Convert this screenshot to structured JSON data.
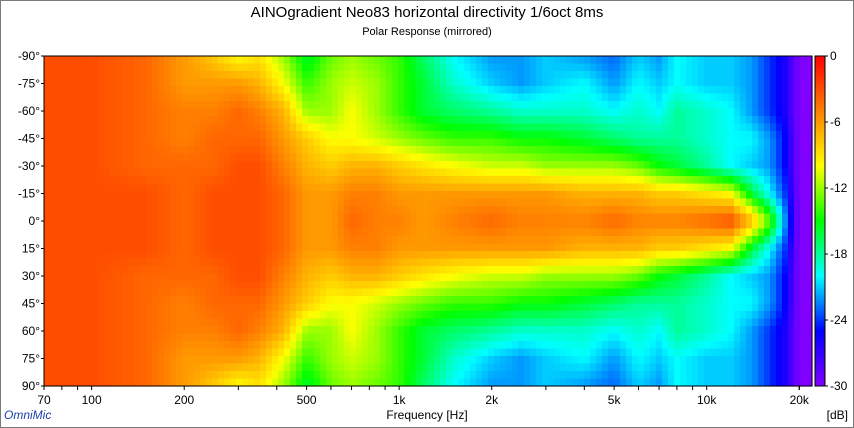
{
  "chart_data": {
    "type": "heatmap",
    "title": "AINOgradient Neo83 horizontal directivity 1/6oct 8ms",
    "subtitle": "Polar Response (mirrored)",
    "xlabel": "Frequency [Hz]",
    "ylabel": "",
    "x_scale": "log",
    "xlim": [
      70,
      22000
    ],
    "ylim": [
      -90,
      90
    ],
    "x_ticks": [
      70,
      100,
      200,
      500,
      1000,
      2000,
      5000,
      10000,
      20000
    ],
    "x_tick_labels": [
      "70",
      "100",
      "200",
      "500",
      "1k",
      "2k",
      "5k",
      "10k",
      "20k"
    ],
    "y_ticks": [
      -90,
      -75,
      -60,
      -45,
      -30,
      -15,
      0,
      15,
      30,
      45,
      60,
      75,
      90
    ],
    "y_tick_labels": [
      "-90°",
      "-75°",
      "-60°",
      "-45°",
      "-30°",
      "-15°",
      "0°",
      "15°",
      "30°",
      "45°",
      "60°",
      "75°",
      "90°"
    ],
    "colorbar": {
      "min": -30,
      "max": 0,
      "ticks": [
        0,
        -6,
        -12,
        -18,
        -24,
        -30
      ],
      "tick_labels": [
        "0",
        "-6",
        "-12",
        "-18",
        "-24",
        "-30"
      ],
      "unit": "[dB]",
      "colors": [
        "#ff0000",
        "#ff8000",
        "#ffff00",
        "#00ff00",
        "#00ffff",
        "#0000ff",
        "#8000ff"
      ]
    },
    "angles": [
      0,
      15,
      30,
      45,
      60,
      75,
      90
    ],
    "frequencies": [
      70,
      100,
      150,
      200,
      250,
      300,
      350,
      420,
      500,
      600,
      700,
      850,
      1000,
      1200,
      1500,
      2000,
      2500,
      3000,
      4000,
      5000,
      6000,
      7000,
      8000,
      10000,
      12000,
      14000,
      16000,
      18000,
      20000,
      22000
    ],
    "values_db": [
      [
        -3,
        -3,
        -3,
        -4,
        -3,
        -3,
        -3,
        -4,
        -6,
        -6,
        -4,
        -5,
        -5,
        -6,
        -5,
        -4,
        -5,
        -5,
        -5,
        -4,
        -5,
        -5,
        -5,
        -4,
        -3,
        -7,
        -13,
        -22,
        -30,
        -30
      ],
      [
        -3,
        -3,
        -3,
        -4,
        -3,
        -3,
        -3,
        -4,
        -6,
        -6,
        -5,
        -5,
        -6,
        -6,
        -6,
        -6,
        -6,
        -6,
        -7,
        -7,
        -7,
        -8,
        -8,
        -9,
        -10,
        -16,
        -20,
        -24,
        -30,
        -30
      ],
      [
        -3,
        -3,
        -4,
        -4,
        -4,
        -3,
        -3,
        -5,
        -7,
        -8,
        -7,
        -7,
        -8,
        -9,
        -10,
        -11,
        -11,
        -12,
        -12,
        -12,
        -13,
        -15,
        -16,
        -18,
        -20,
        -21,
        -22,
        -25,
        -30,
        -30
      ],
      [
        -3,
        -3,
        -4,
        -5,
        -4,
        -4,
        -4,
        -6,
        -8,
        -10,
        -10,
        -11,
        -12,
        -13,
        -14,
        -14,
        -15,
        -15,
        -16,
        -17,
        -18,
        -18,
        -18,
        -19,
        -20,
        -20,
        -22,
        -25,
        -30,
        -30
      ],
      [
        -3,
        -3,
        -4,
        -5,
        -5,
        -4,
        -5,
        -7,
        -12,
        -12,
        -10,
        -12,
        -14,
        -16,
        -17,
        -18,
        -19,
        -19,
        -19,
        -20,
        -19,
        -20,
        -18,
        -19,
        -20,
        -22,
        -24,
        -26,
        -30,
        -30
      ],
      [
        -3,
        -3,
        -4,
        -6,
        -6,
        -6,
        -7,
        -10,
        -14,
        -12,
        -11,
        -12,
        -14,
        -16,
        -19,
        -21,
        -22,
        -21,
        -20,
        -22,
        -20,
        -21,
        -20,
        -21,
        -21,
        -22,
        -24,
        -26,
        -30,
        -30
      ],
      [
        -3,
        -3,
        -4,
        -6,
        -8,
        -10,
        -9,
        -12,
        -16,
        -13,
        -12,
        -13,
        -14,
        -17,
        -20,
        -22,
        -22,
        -21,
        -22,
        -23,
        -21,
        -22,
        -20,
        -21,
        -21,
        -22,
        -24,
        -26,
        -30,
        -30
      ]
    ]
  }
}
